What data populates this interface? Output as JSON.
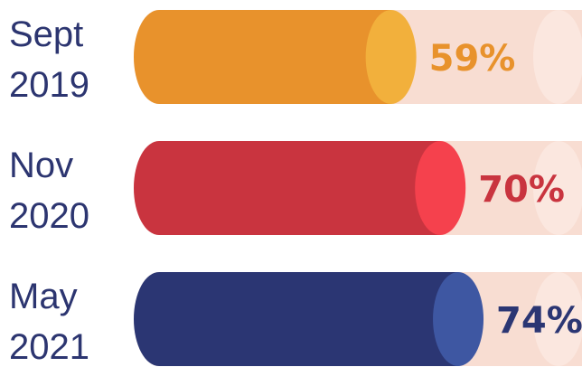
{
  "chart_data": {
    "type": "bar",
    "orientation": "horizontal",
    "categories": [
      [
        "Sept",
        "2019"
      ],
      [
        "Nov",
        "2020"
      ],
      [
        "May",
        "2021"
      ]
    ],
    "values": [
      59,
      70,
      74
    ],
    "value_labels": [
      "59%",
      "70%",
      "74%"
    ],
    "max": 100,
    "colors": {
      "bars": [
        "#e8922c",
        "#c9343f",
        "#2b3673"
      ],
      "bar_caps": [
        "#f2b03c",
        "#f5414d",
        "#3e57a2"
      ],
      "value_text": [
        "#e8922c",
        "#c9343f",
        "#2b3673"
      ],
      "track": "#f8ddd2",
      "track_cap": "#fbe7df",
      "row_label": "#2c3570"
    },
    "grid": false,
    "legend": "none"
  }
}
